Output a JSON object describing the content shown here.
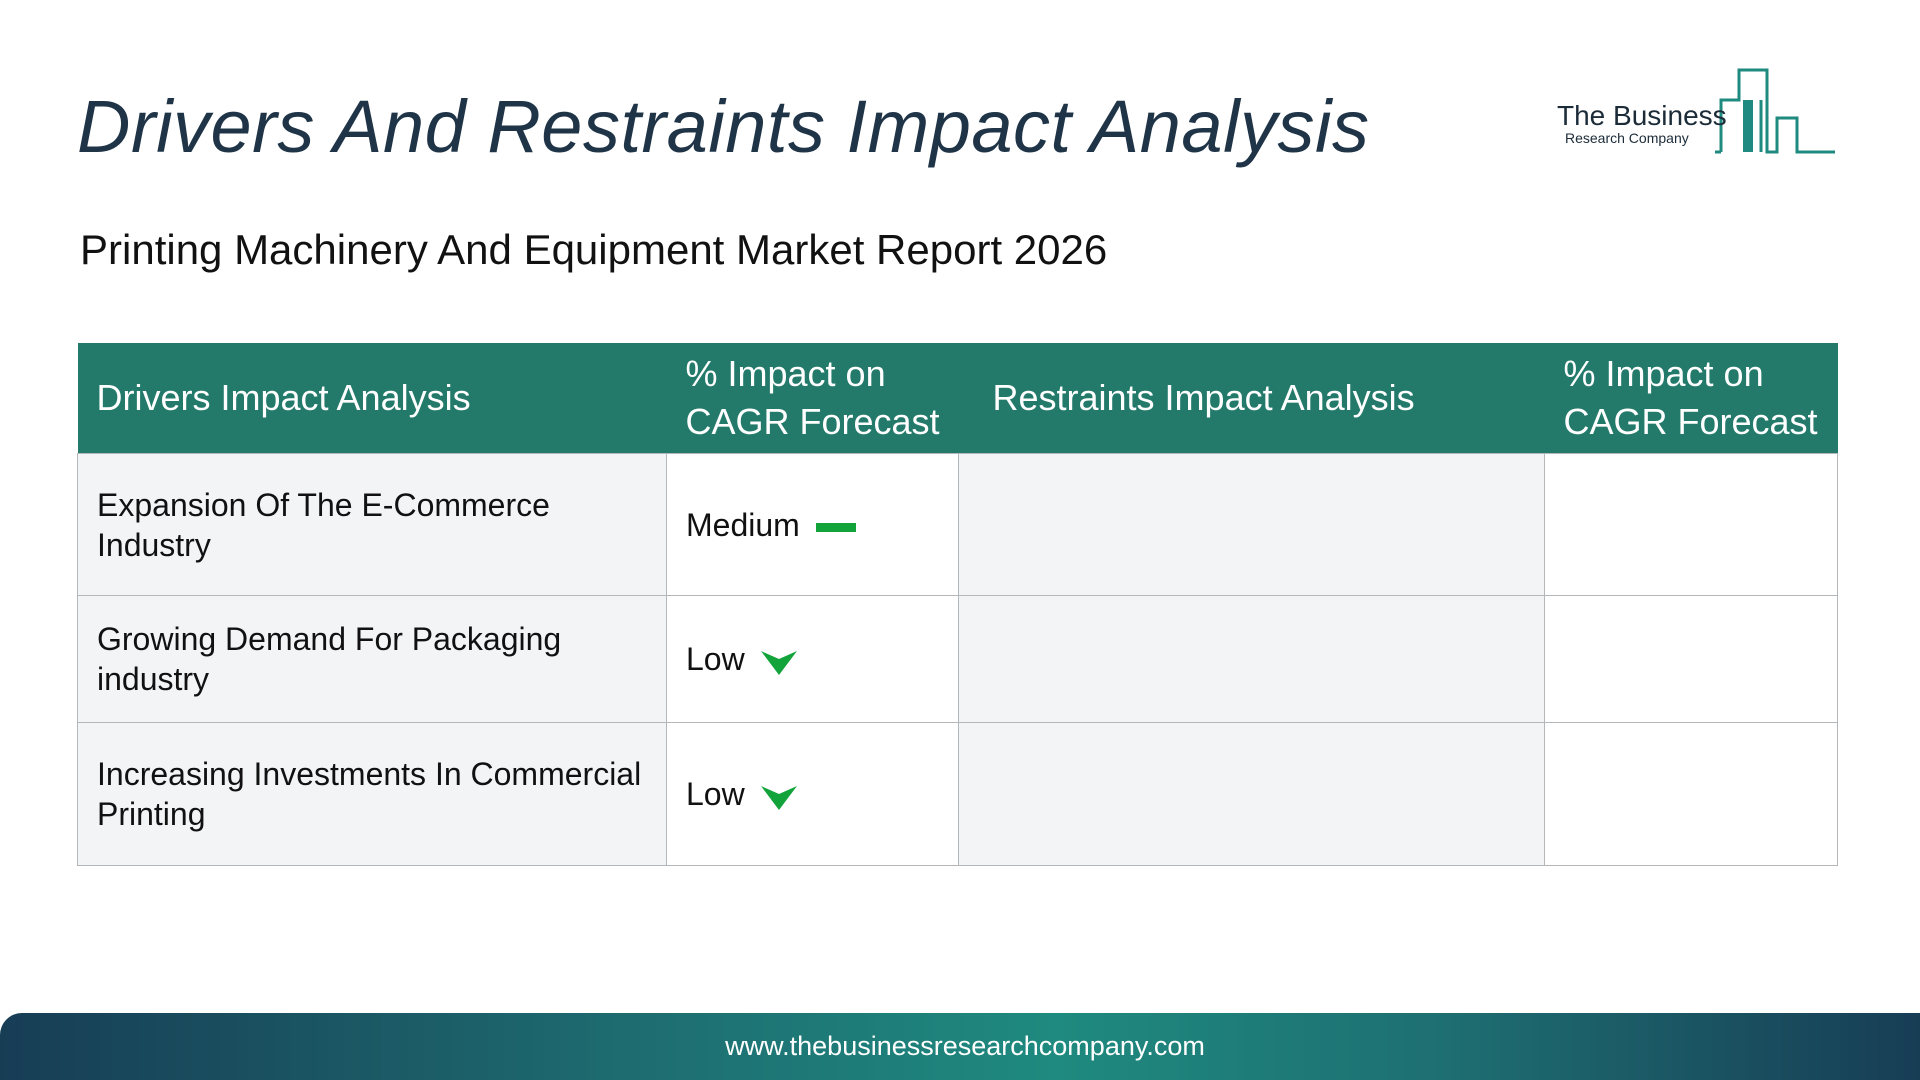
{
  "header": {
    "title": "Drivers And Restraints Impact Analysis",
    "subtitle": "Printing Machinery And Equipment Market Report 2026"
  },
  "logo": {
    "name": "The Business",
    "sub": "Research Company",
    "color": "#1f8a7f"
  },
  "table": {
    "columns": [
      "Drivers Impact Analysis",
      "% Impact on CAGR Forecast",
      "Restraints Impact Analysis",
      "% Impact on CAGR Forecast"
    ],
    "rows": [
      {
        "driver": "Expansion Of The E-Commerce Industry",
        "impact": "Medium",
        "impact_icon": "dash-icon",
        "restraint": "",
        "restraint_impact": ""
      },
      {
        "driver": "Growing Demand For Packaging industry",
        "impact": "Low",
        "impact_icon": "arrow-down-icon",
        "restraint": "",
        "restraint_impact": ""
      },
      {
        "driver": "Increasing Investments In Commercial Printing",
        "impact": "Low",
        "impact_icon": "arrow-down-icon",
        "restraint": "",
        "restraint_impact": ""
      }
    ],
    "header_color": "#237a6b",
    "impact_color": "#12a33b"
  },
  "footer": {
    "url": "www.thebusinessresearchcompany.com"
  }
}
